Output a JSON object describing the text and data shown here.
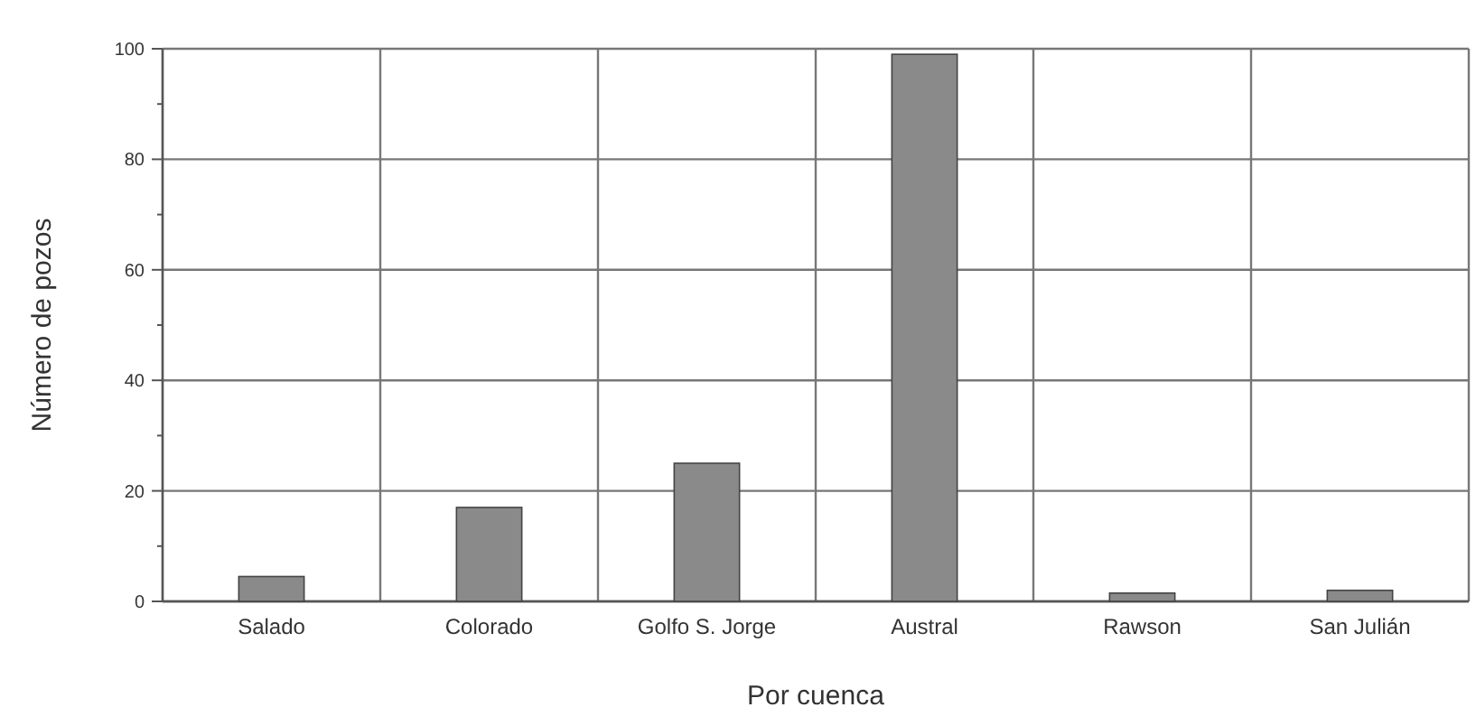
{
  "chart_data": {
    "type": "bar",
    "xlabel": "Por cuenca",
    "ylabel": "Número de pozos",
    "categories": [
      "Salado",
      "Colorado",
      "Golfo S. Jorge",
      "Austral",
      "Rawson",
      "San Julián"
    ],
    "values": [
      4.5,
      17,
      25,
      99,
      1.5,
      2
    ],
    "color": "#8a8a8a",
    "ylim": [
      0,
      100
    ],
    "yticks": [
      0,
      {
        "value": 10,
        "label": null
      },
      20,
      {
        "value": 30,
        "label": null
      },
      40,
      {
        "value": 50,
        "label": null
      },
      60,
      {
        "value": 70,
        "label": null
      },
      80,
      {
        "value": 90,
        "label": null
      },
      100
    ],
    "grid": true
  }
}
